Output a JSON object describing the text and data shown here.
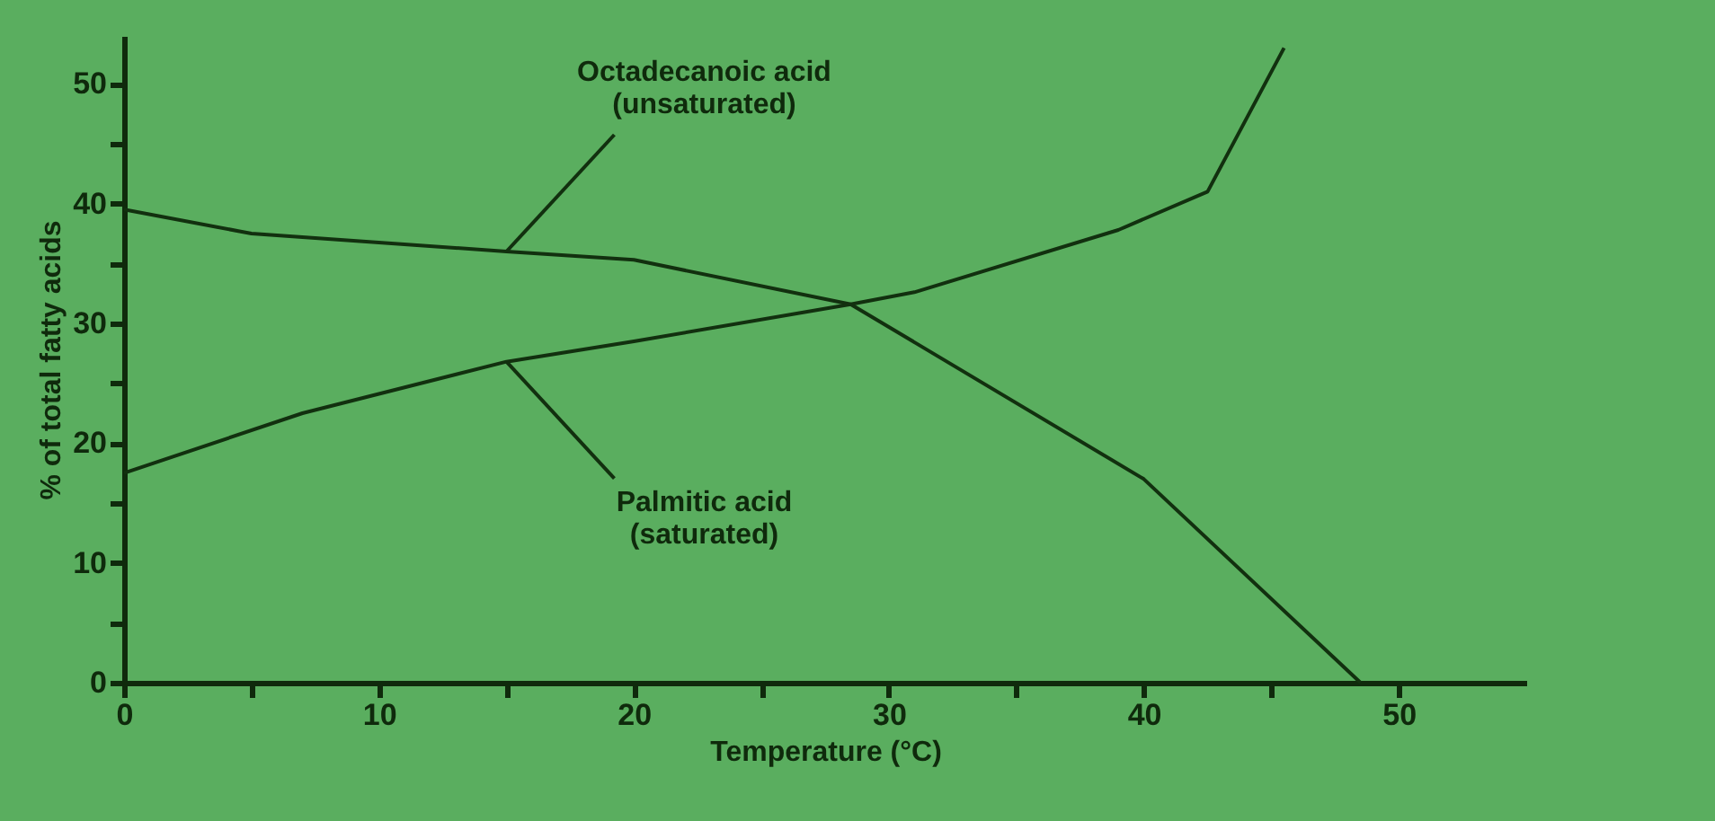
{
  "chart_data": {
    "type": "line",
    "xlabel": "Temperature (°C)",
    "ylabel": "% of total fatty acids",
    "xlim": [
      0,
      55
    ],
    "ylim": [
      0,
      54
    ],
    "xticks": [
      0,
      {
        "value": 5,
        "label": null
      },
      10,
      {
        "value": 15,
        "label": null
      },
      20,
      {
        "value": 25,
        "label": null
      },
      30,
      {
        "value": 35,
        "label": null
      },
      40,
      {
        "value": 45,
        "label": null
      },
      50
    ],
    "yticks": [
      0,
      {
        "value": 5,
        "label": null
      },
      10,
      {
        "value": 15,
        "label": null
      },
      20,
      {
        "value": 25,
        "label": null
      },
      30,
      {
        "value": 35,
        "label": null
      },
      40,
      {
        "value": 45,
        "label": null
      },
      50
    ],
    "grid": false,
    "legend": false,
    "marker": "none",
    "line_style": "solid",
    "series": [
      {
        "name": "Octadecanoic acid\n(unsaturated)",
        "color": "#12300f",
        "x": [
          0,
          5,
          15,
          20,
          28.5,
          40,
          48.5
        ],
        "values": [
          39.5,
          37.5,
          36,
          35.3,
          31.6,
          17,
          0
        ]
      },
      {
        "name": "Palmitic acid\n(saturated)",
        "color": "#12300f",
        "x": [
          0,
          7,
          15,
          20,
          28.5,
          31,
          39,
          42.5,
          44,
          45.5
        ],
        "values": [
          17.5,
          22.5,
          26.8,
          28.5,
          31.6,
          32.6,
          37.8,
          41,
          47,
          53
        ]
      }
    ]
  }
}
